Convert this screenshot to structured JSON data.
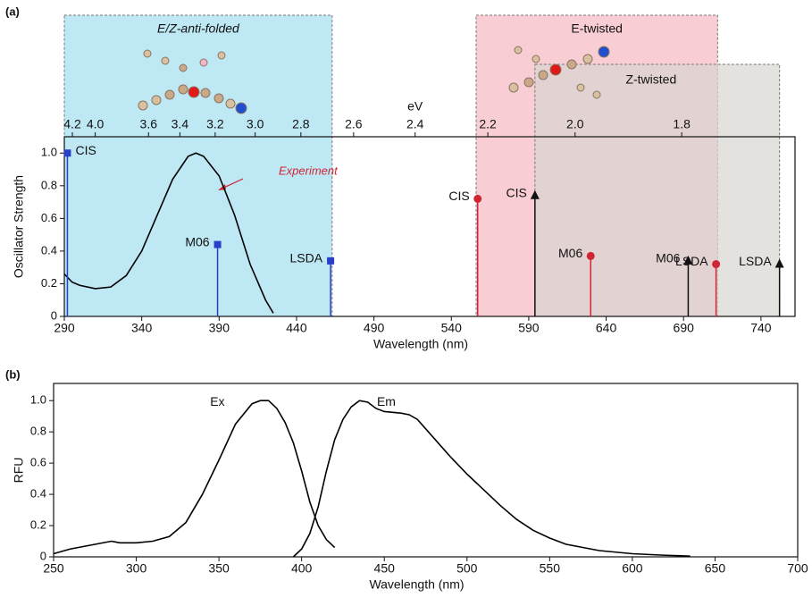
{
  "panels": [
    "(a)",
    "(b)"
  ],
  "chart_data": [
    {
      "type": "stick",
      "xlabel": "Wavelength (nm)",
      "ylabel": "Oscillator Strength",
      "x2label": "eV",
      "xlim": [
        290,
        762
      ],
      "ylim": [
        0,
        1.1
      ],
      "xticks": [
        290,
        340,
        390,
        440,
        490,
        540,
        590,
        640,
        690,
        740
      ],
      "yticks": [
        0,
        0.2,
        0.4,
        0.6,
        0.8,
        {
          "value": 1,
          "label": "1.0"
        }
      ],
      "x2ticks": [
        4.2,
        {
          "value": 4,
          "label": "4.0"
        },
        3.6,
        3.4,
        3.2,
        {
          "value": 3,
          "label": "3.0"
        },
        2.8,
        2.6,
        2.4,
        2.2,
        {
          "value": 2,
          "label": "2.0"
        },
        1.8
      ],
      "series": [
        {
          "name": "Experiment",
          "kind": "line",
          "color": "#000000",
          "x": [
            290,
            295,
            300,
            310,
            320,
            330,
            340,
            350,
            360,
            370,
            375,
            380,
            390,
            400,
            410,
            420,
            425
          ],
          "values": [
            0.26,
            0.21,
            0.19,
            0.17,
            0.18,
            0.25,
            0.4,
            0.62,
            0.84,
            0.98,
            1.0,
            0.98,
            0.86,
            0.62,
            0.32,
            0.1,
            0.02
          ]
        },
        {
          "name": "E/Z-anti-folded",
          "kind": "stick",
          "marker": "square",
          "color": "#2a3fc8",
          "region": [
            290,
            463
          ],
          "region_color": "#bde8f4",
          "x": [
            292,
            389,
            462
          ],
          "values": [
            1.0,
            0.44,
            0.34
          ],
          "labels": [
            "CIS",
            "M06",
            "LSDA"
          ]
        },
        {
          "name": "E-twisted",
          "kind": "stick",
          "marker": "circle",
          "color": "#d02535",
          "region": [
            556,
            712
          ],
          "region_color": "#f8cdd3",
          "x": [
            557,
            630,
            711
          ],
          "values": [
            0.72,
            0.37,
            0.32
          ],
          "labels": [
            "CIS",
            "M06",
            "LSDA"
          ]
        },
        {
          "name": "Z-twisted",
          "kind": "stick",
          "marker": "triangle",
          "color": "#111111",
          "region": [
            594,
            752
          ],
          "region_color": "#d9d5d2",
          "x": [
            594,
            693,
            752
          ],
          "values": [
            0.74,
            0.34,
            0.32
          ],
          "labels": [
            "CIS",
            "M06",
            "LSDA"
          ]
        }
      ]
    },
    {
      "type": "line",
      "xlabel": "Wavelength (nm)",
      "ylabel": "RFU",
      "xlim": [
        250,
        700
      ],
      "ylim": [
        0,
        1.11
      ],
      "xticks": [
        250,
        300,
        350,
        400,
        450,
        500,
        550,
        600,
        650,
        700
      ],
      "yticks": [
        0,
        0.2,
        0.4,
        0.6,
        0.8,
        {
          "value": 1,
          "label": "1.0"
        }
      ],
      "series": [
        {
          "name": "Ex",
          "color": "#000000",
          "x": [
            250,
            260,
            270,
            280,
            285,
            290,
            300,
            310,
            320,
            330,
            340,
            350,
            360,
            370,
            375,
            380,
            385,
            390,
            395,
            400,
            405,
            410,
            415,
            420
          ],
          "values": [
            0.02,
            0.05,
            0.07,
            0.09,
            0.1,
            0.09,
            0.09,
            0.1,
            0.13,
            0.22,
            0.4,
            0.62,
            0.85,
            0.98,
            1.0,
            1.0,
            0.95,
            0.86,
            0.73,
            0.55,
            0.35,
            0.2,
            0.11,
            0.06
          ]
        },
        {
          "name": "Em",
          "color": "#000000",
          "x": [
            395,
            400,
            405,
            410,
            415,
            420,
            425,
            430,
            435,
            440,
            445,
            450,
            460,
            465,
            470,
            480,
            490,
            500,
            510,
            520,
            530,
            540,
            550,
            560,
            570,
            580,
            600,
            620,
            635
          ],
          "values": [
            0.0,
            0.05,
            0.15,
            0.32,
            0.55,
            0.75,
            0.88,
            0.96,
            1.0,
            0.99,
            0.95,
            0.93,
            0.92,
            0.91,
            0.88,
            0.76,
            0.64,
            0.53,
            0.43,
            0.33,
            0.24,
            0.17,
            0.12,
            0.08,
            0.06,
            0.04,
            0.02,
            0.01,
            0.005
          ]
        }
      ]
    }
  ]
}
